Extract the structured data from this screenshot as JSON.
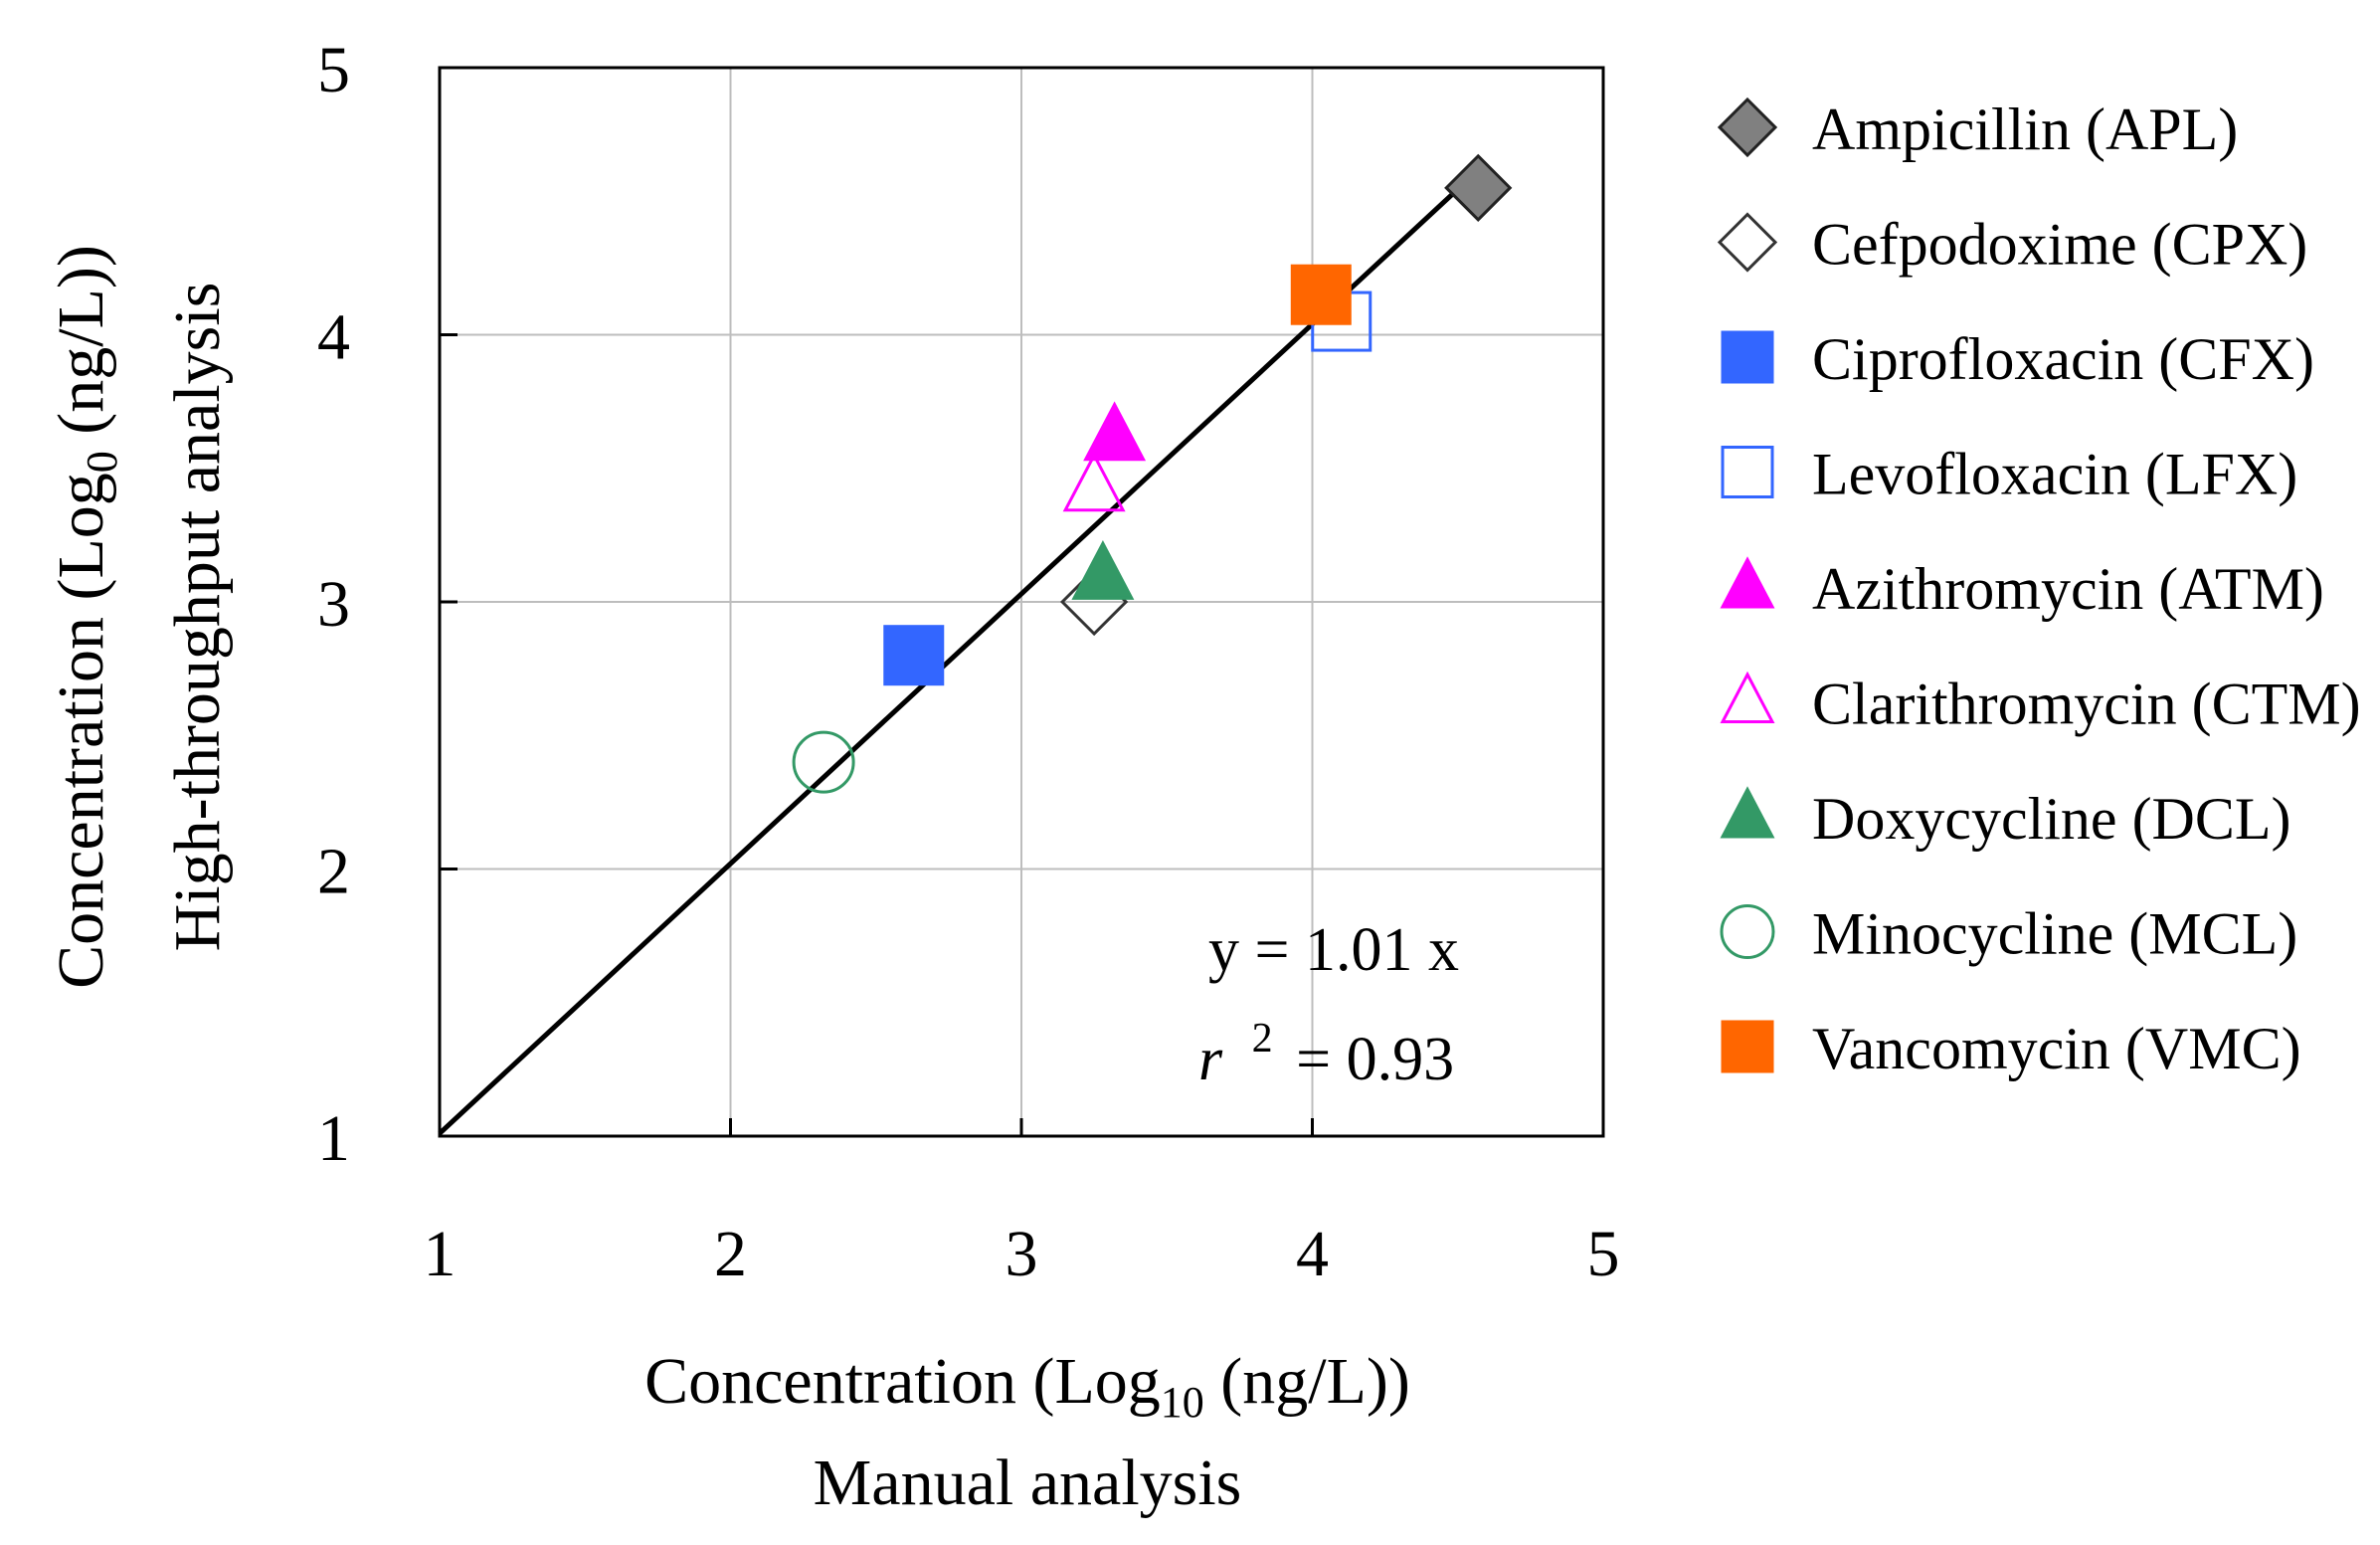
{
  "chart_data": {
    "type": "scatter",
    "xlabel_line1": "Concentration (Log",
    "xlabel_sub": "10",
    "xlabel_line1_end": " (ng/L))",
    "xlabel_line2": "Manual analysis",
    "ylabel_line1": "Concentration (Log",
    "ylabel_sub": "0",
    "ylabel_line1_end": " (ng/L))",
    "ylabel_line2": "High-throughput analysis",
    "xlim": [
      1,
      5
    ],
    "ylim": [
      1,
      5
    ],
    "xticks": [
      "1",
      "2",
      "3",
      "4",
      "5"
    ],
    "yticks": [
      "1",
      "2",
      "3",
      "4",
      "5"
    ],
    "grid": true,
    "legend_placement": "right",
    "series": [
      {
        "name": "Ampicillin (APL)",
        "marker": "diamond",
        "fill": "#808080",
        "stroke": "#222222",
        "x": [
          4.57
        ],
        "y": [
          4.55
        ]
      },
      {
        "name": "Cefpodoxime (CPX)",
        "marker": "diamond",
        "fill": "none",
        "stroke": "#333333",
        "x": [
          3.25
        ],
        "y": [
          3.0
        ]
      },
      {
        "name": "Ciprofloxacin (CFX)",
        "marker": "square",
        "fill": "#3366FF",
        "stroke": "#3366FF",
        "x": [
          2.63
        ],
        "y": [
          2.8
        ]
      },
      {
        "name": "Levofloxacin (LFX)",
        "marker": "square",
        "fill": "none",
        "stroke": "#3366FF",
        "x": [
          4.1
        ],
        "y": [
          4.05
        ]
      },
      {
        "name": "Azithromycin (ATM)",
        "marker": "triangle",
        "fill": "#FF00FF",
        "stroke": "#FF00FF",
        "x": [
          3.32
        ],
        "y": [
          3.62
        ]
      },
      {
        "name": "Clarithromycin (CTM)",
        "marker": "triangle",
        "fill": "none",
        "stroke": "#FF00FF",
        "x": [
          3.25
        ],
        "y": [
          3.43
        ]
      },
      {
        "name": "Doxycycline (DCL)",
        "marker": "triangle",
        "fill": "#339966",
        "stroke": "#339966",
        "x": [
          3.28
        ],
        "y": [
          3.1
        ]
      },
      {
        "name": "Minocycline (MCL)",
        "marker": "circle",
        "fill": "none",
        "stroke": "#339966",
        "x": [
          2.32
        ],
        "y": [
          2.4
        ]
      },
      {
        "name": "Vancomycin (VMC)",
        "marker": "square",
        "fill": "#FF6600",
        "stroke": "#FF6600",
        "x": [
          4.03
        ],
        "y": [
          4.15
        ]
      }
    ],
    "fit_line": {
      "slope": 1.01,
      "x_range": [
        1,
        4.57
      ]
    },
    "annotation_eq": "y = 1.01 x",
    "annotation_r_symbol": "r",
    "annotation_r_exp": "2",
    "annotation_r_value": "= 0.93"
  }
}
